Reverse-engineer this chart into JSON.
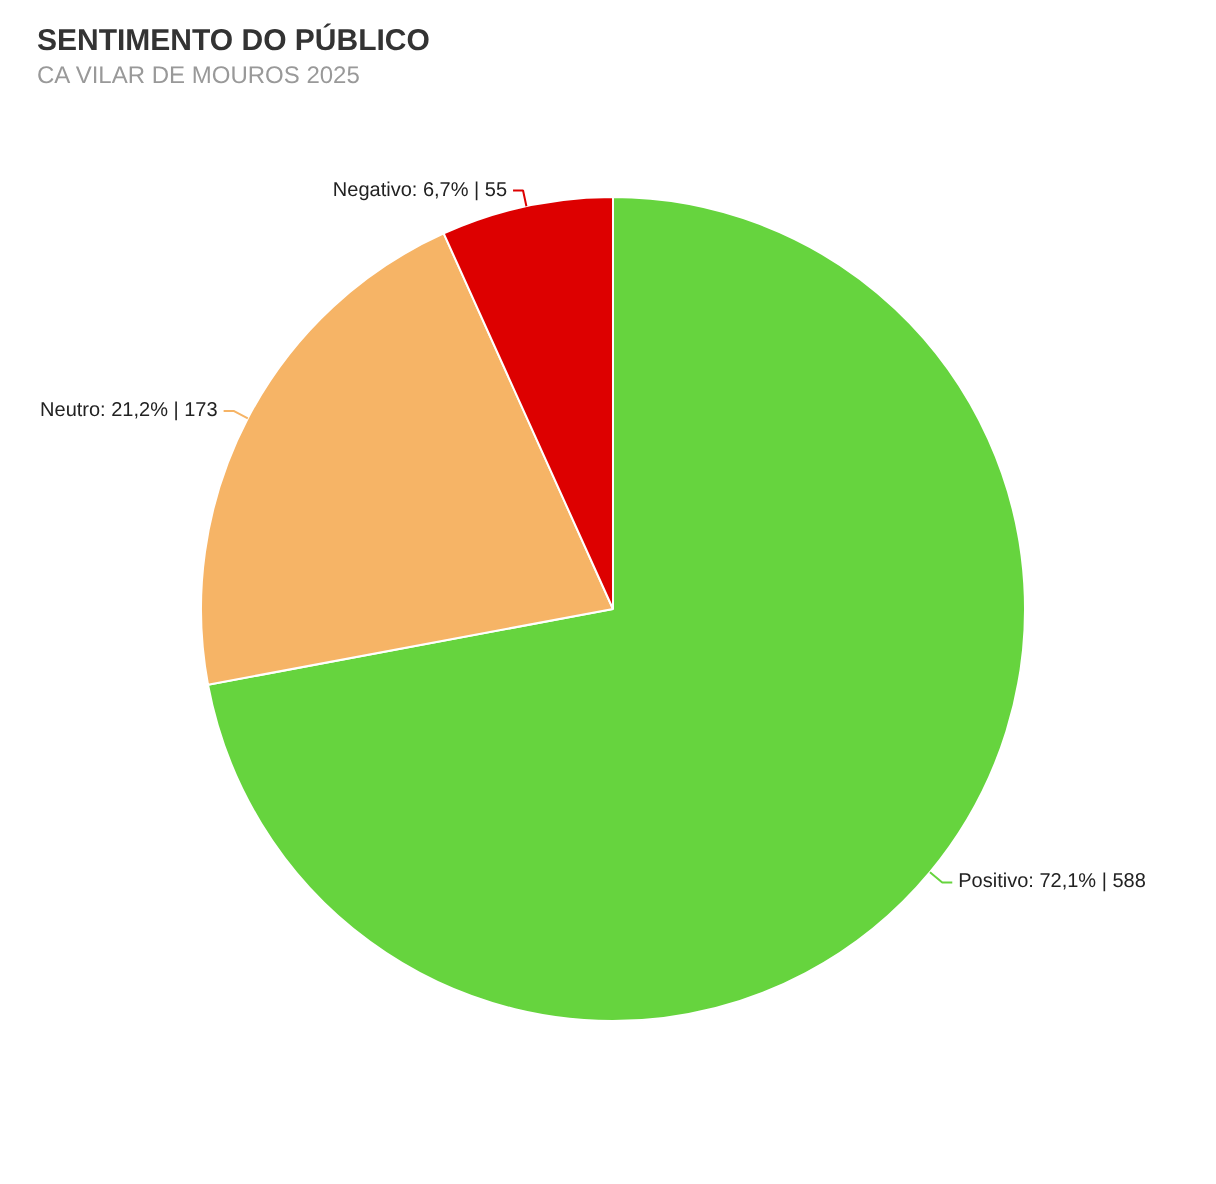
{
  "chart_data": {
    "type": "pie",
    "title": "SENTIMENTO DO PÚBLICO",
    "subtitle": "CA VILAR DE MOUROS 2025",
    "categories": [
      "Positivo",
      "Neutro",
      "Negativo"
    ],
    "values": [
      588,
      173,
      55
    ],
    "colors": [
      "#66d43e",
      "#f6b466",
      "#dd0000"
    ],
    "value_labels": [
      "72,1% | 588",
      "21,2% | 173",
      "6,7% | 55"
    ]
  }
}
